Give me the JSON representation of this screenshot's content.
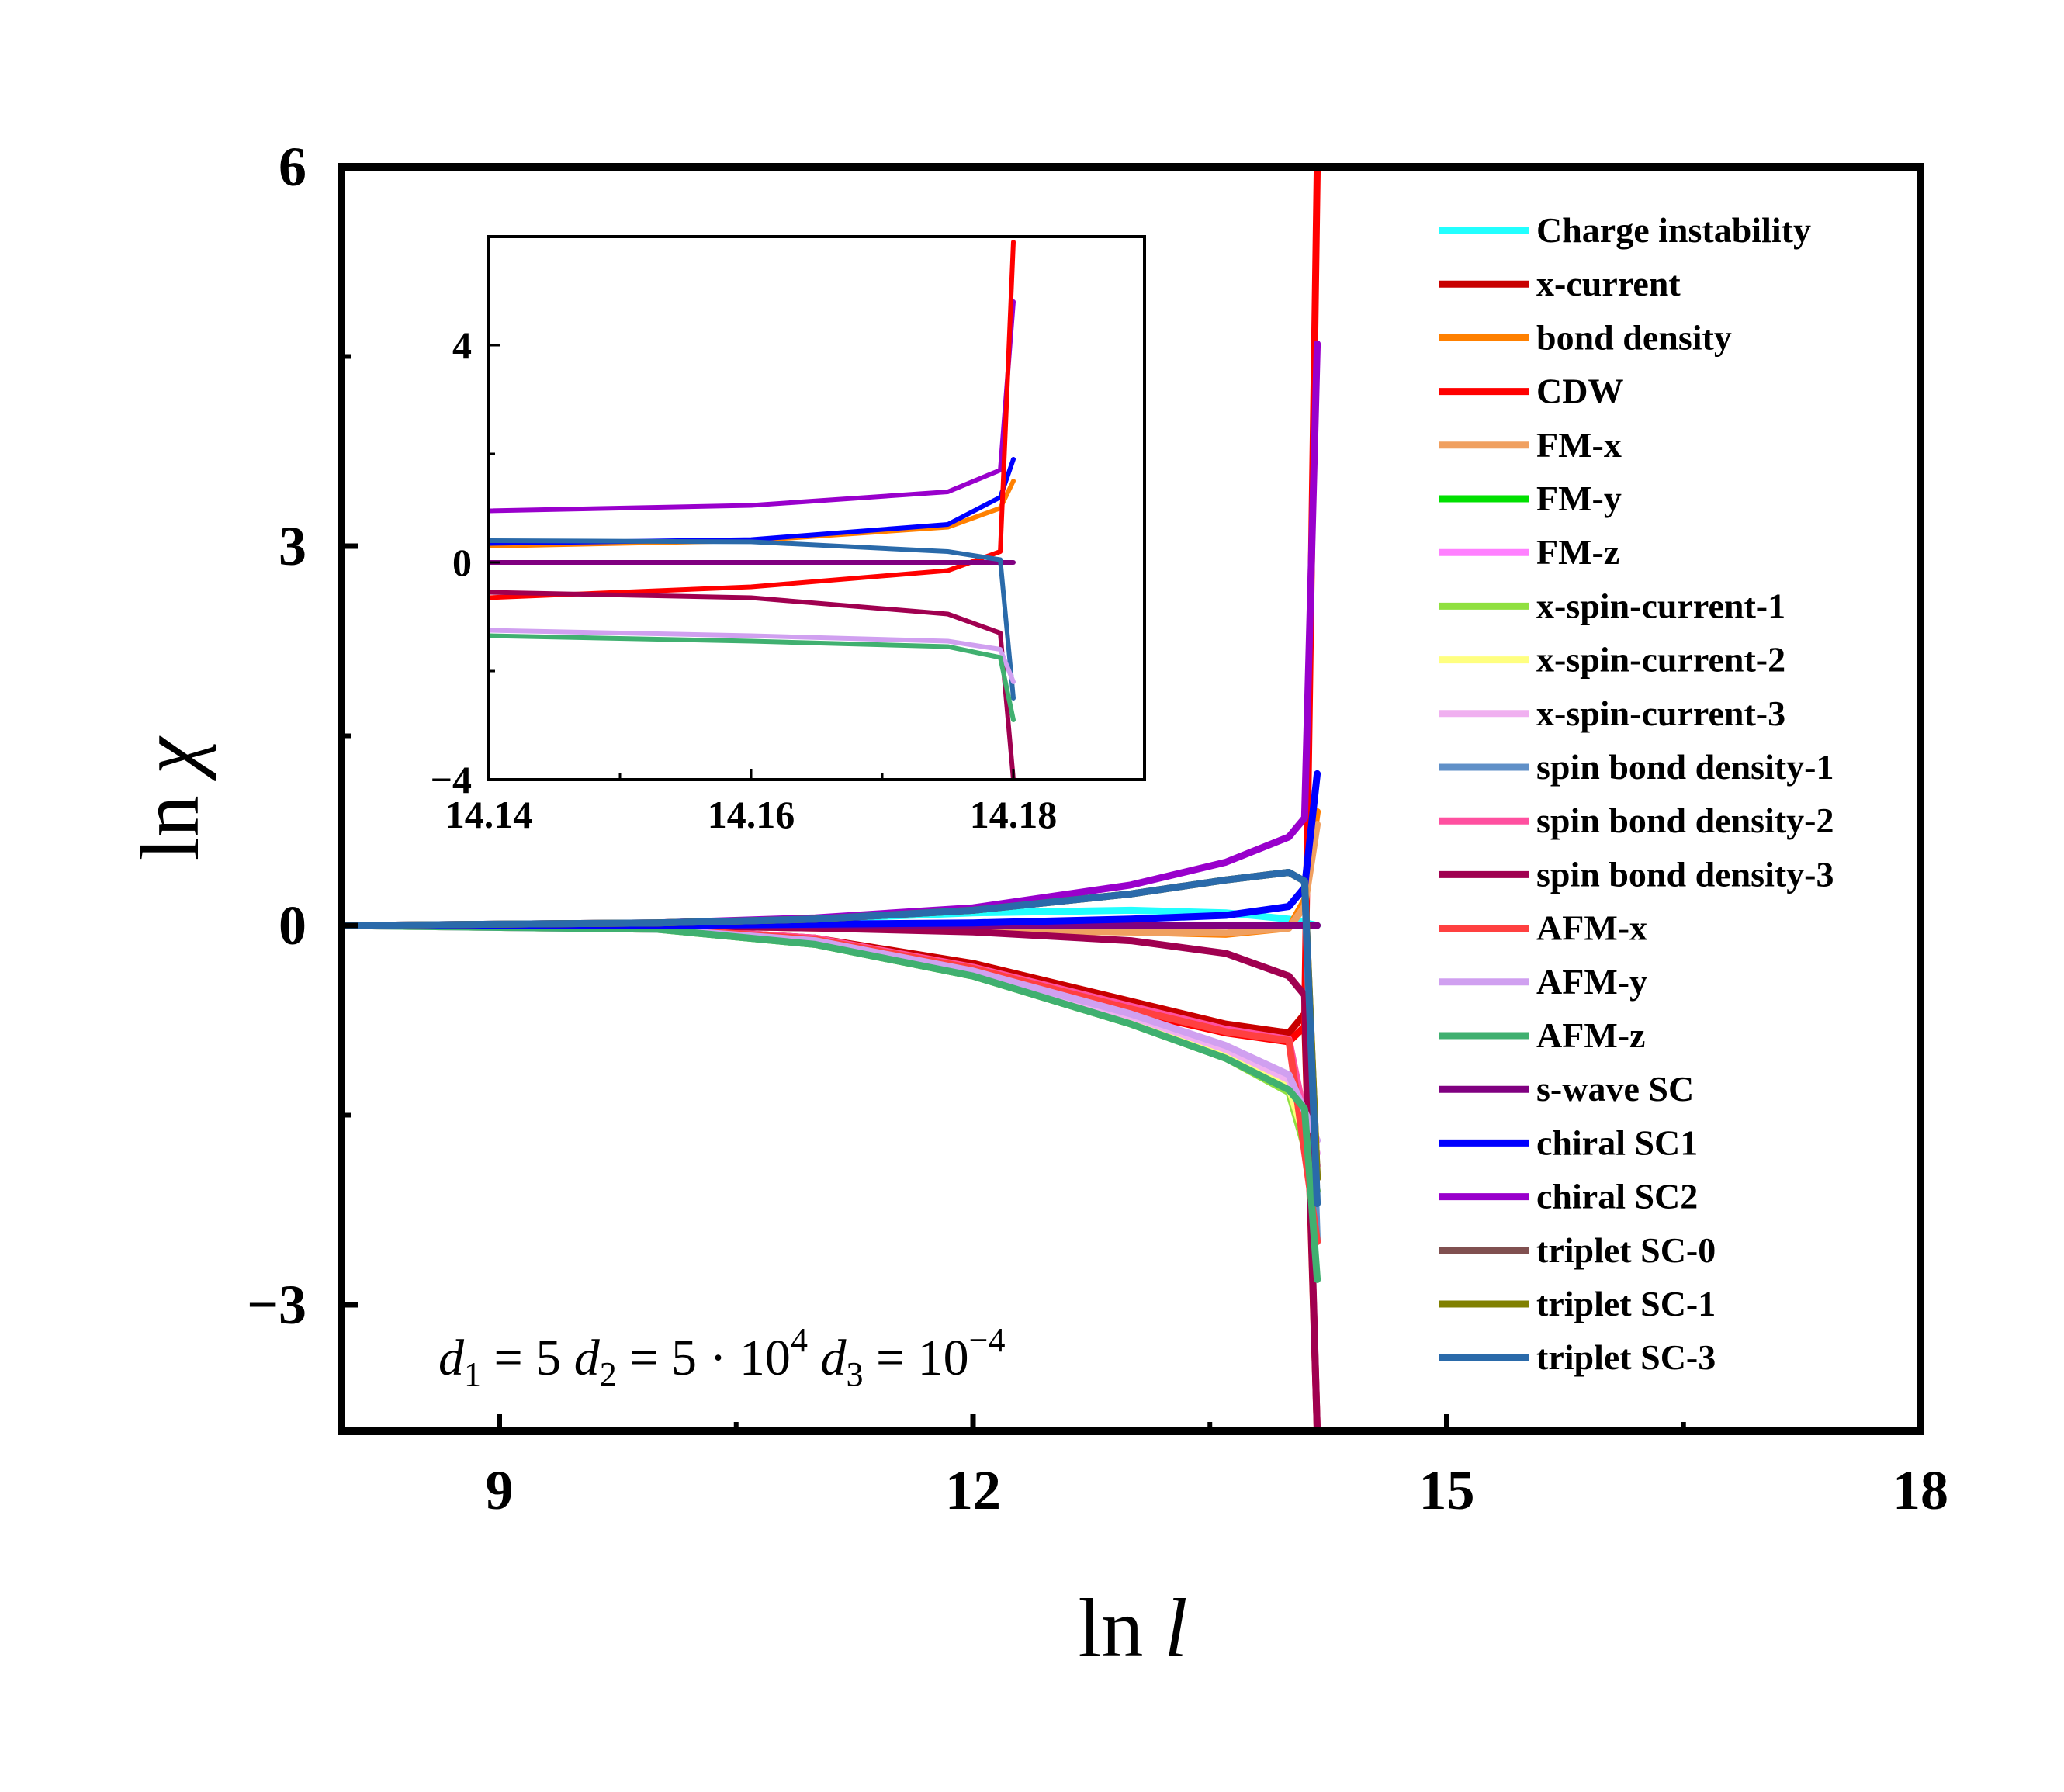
{
  "chart_data": {
    "type": "line",
    "xlabel": "ln l",
    "ylabel": "ln χ",
    "xlim": [
      8,
      18
    ],
    "ylim": [
      -4,
      6
    ],
    "xticks": [
      9,
      12,
      15,
      18
    ],
    "yticks": [
      -3,
      0,
      3,
      6
    ],
    "ytick_labels": [
      "−3",
      "0",
      "3",
      "6"
    ],
    "annotation": "d1 = 5 d2 = 5·10^4 d3 = 10^−4",
    "annotation_parts": {
      "d1": "d",
      "sub1": "1",
      "eq1": " = 5 ",
      "d2": "d",
      "sub2": "2",
      "eq2": " = 5 · 10",
      "sup2": "4",
      "d3": " d",
      "sub3": "3",
      "eq3": " = 10",
      "sup3": "−4"
    },
    "divergence_x": 14.18,
    "legend_position": "right",
    "series": [
      {
        "name": "Charge instability",
        "color": "#22ffff",
        "x": [
          8,
          10,
          11,
          12,
          13,
          13.6,
          14,
          14.18
        ],
        "y": [
          0,
          0,
          0.05,
          0.1,
          0.12,
          0.1,
          0.05,
          0.0
        ]
      },
      {
        "name": "x-current",
        "color": "#c80000",
        "x": [
          8,
          10,
          11,
          12,
          13,
          13.6,
          14,
          14.1,
          14.18
        ],
        "y": [
          0,
          -0.02,
          -0.1,
          -0.3,
          -0.6,
          -0.78,
          -0.85,
          -0.7,
          -4
        ]
      },
      {
        "name": "bond density",
        "color": "#ff8000",
        "x": [
          8,
          10,
          11,
          12,
          13,
          13.6,
          14,
          14.1,
          14.18
        ],
        "y": [
          0,
          0,
          -0.02,
          -0.04,
          -0.05,
          -0.07,
          -0.02,
          0.2,
          0.9
        ]
      },
      {
        "name": "CDW",
        "color": "#ff0000",
        "x": [
          8,
          10,
          11,
          12,
          13,
          13.6,
          14,
          14.1,
          14.18
        ],
        "y": [
          0,
          -0.02,
          -0.12,
          -0.35,
          -0.68,
          -0.85,
          -0.92,
          -0.8,
          6
        ]
      },
      {
        "name": "FM-x",
        "color": "#f0a060",
        "x": [
          8,
          10,
          11,
          12,
          13,
          13.6,
          14,
          14.1,
          14.18
        ],
        "y": [
          0,
          0,
          -0.02,
          -0.04,
          -0.05,
          -0.06,
          -0.02,
          0.15,
          0.8
        ]
      },
      {
        "name": "FM-y",
        "color": "#00e000",
        "x": [
          8,
          10,
          11,
          12,
          13,
          13.6,
          14,
          14.18
        ],
        "y": [
          0,
          -0.03,
          -0.15,
          -0.4,
          -0.78,
          -1.05,
          -1.3,
          -2.0
        ]
      },
      {
        "name": "FM-z",
        "color": "#ff80ff",
        "x": [
          8,
          10,
          11,
          12,
          13,
          13.6,
          14,
          14.18
        ],
        "y": [
          0,
          -0.03,
          -0.13,
          -0.38,
          -0.74,
          -1.0,
          -1.25,
          -1.9
        ]
      },
      {
        "name": "x-spin-current-1",
        "color": "#90e040",
        "x": [
          8,
          10,
          11,
          12,
          13,
          13.6,
          14,
          14.18
        ],
        "y": [
          0,
          -0.03,
          -0.15,
          -0.4,
          -0.78,
          -1.05,
          -1.32,
          -2.1
        ]
      },
      {
        "name": "x-spin-current-2",
        "color": "#ffff80",
        "x": [
          8,
          10,
          11,
          12,
          13,
          13.6,
          14,
          14.18
        ],
        "y": [
          0,
          -0.03,
          -0.14,
          -0.39,
          -0.76,
          -1.02,
          -1.28,
          -2.0
        ]
      },
      {
        "name": "x-spin-current-3",
        "color": "#f0b0f0",
        "x": [
          8,
          10,
          11,
          12,
          13,
          13.6,
          14,
          14.18
        ],
        "y": [
          0,
          -0.03,
          -0.13,
          -0.37,
          -0.72,
          -0.98,
          -1.22,
          -1.8
        ]
      },
      {
        "name": "spin bond density-1",
        "color": "#6090c8",
        "x": [
          8,
          10,
          11,
          12,
          13,
          13.6,
          14,
          14.1,
          14.18
        ],
        "y": [
          0,
          0.02,
          0.05,
          0.12,
          0.25,
          0.36,
          0.42,
          0.35,
          -2.5
        ]
      },
      {
        "name": "spin bond density-2",
        "color": "#ff50a0",
        "x": [
          8,
          10,
          11,
          12,
          13,
          13.6,
          14,
          14.18
        ],
        "y": [
          0,
          -0.02,
          -0.1,
          -0.33,
          -0.64,
          -0.82,
          -0.9,
          -2.0
        ]
      },
      {
        "name": "spin bond density-3",
        "color": "#a00050",
        "x": [
          8,
          10,
          11,
          12,
          13,
          13.6,
          14,
          14.1,
          14.18
        ],
        "y": [
          0,
          0,
          -0.02,
          -0.05,
          -0.12,
          -0.22,
          -0.4,
          -0.55,
          -4
        ]
      },
      {
        "name": "AFM-x",
        "color": "#ff4040",
        "x": [
          8,
          10,
          11,
          12,
          13,
          13.6,
          14,
          14.18
        ],
        "y": [
          0,
          -0.02,
          -0.11,
          -0.34,
          -0.66,
          -0.84,
          -0.91,
          -2.5
        ]
      },
      {
        "name": "AFM-y",
        "color": "#d0a0f0",
        "x": [
          8,
          10,
          11,
          12,
          13,
          13.6,
          14,
          14.18
        ],
        "y": [
          0,
          -0.03,
          -0.12,
          -0.36,
          -0.7,
          -0.95,
          -1.18,
          -1.7
        ]
      },
      {
        "name": "AFM-z",
        "color": "#40b070",
        "x": [
          8,
          10,
          11,
          12,
          13,
          13.6,
          14,
          14.1,
          14.18
        ],
        "y": [
          0,
          -0.03,
          -0.15,
          -0.4,
          -0.78,
          -1.05,
          -1.3,
          -1.45,
          -2.8
        ]
      },
      {
        "name": "s-wave SC",
        "color": "#800080",
        "x": [
          8,
          10,
          12,
          14,
          14.18
        ],
        "y": [
          0,
          0,
          0,
          0,
          0
        ]
      },
      {
        "name": "chiral SC1",
        "color": "#0000ff",
        "x": [
          8,
          10,
          11,
          12,
          13,
          13.6,
          14,
          14.1,
          14.18
        ],
        "y": [
          0,
          0,
          0.01,
          0.02,
          0.05,
          0.08,
          0.15,
          0.3,
          1.2
        ]
      },
      {
        "name": "chiral SC2",
        "color": "#9900cc",
        "x": [
          8,
          10,
          11,
          12,
          13,
          13.6,
          14,
          14.1,
          14.18
        ],
        "y": [
          0,
          0.02,
          0.06,
          0.14,
          0.32,
          0.5,
          0.7,
          0.85,
          4.6
        ]
      },
      {
        "name": "triplet SC-0",
        "color": "#805050",
        "x": [
          8,
          10,
          11,
          12,
          13,
          13.6,
          14,
          14.1,
          14.18
        ],
        "y": [
          0,
          0.02,
          0.05,
          0.12,
          0.25,
          0.36,
          0.42,
          0.35,
          -2.0
        ]
      },
      {
        "name": "triplet SC-1",
        "color": "#808000",
        "x": [
          8,
          10,
          11,
          12,
          13,
          13.6,
          14,
          14.1,
          14.18
        ],
        "y": [
          0,
          0.02,
          0.05,
          0.12,
          0.25,
          0.36,
          0.42,
          0.35,
          -2.0
        ]
      },
      {
        "name": "triplet SC-3",
        "color": "#2a6aaa",
        "x": [
          8,
          10,
          11,
          12,
          13,
          13.6,
          14,
          14.1,
          14.18
        ],
        "y": [
          0,
          0.02,
          0.05,
          0.12,
          0.25,
          0.36,
          0.42,
          0.35,
          -2.2
        ]
      }
    ],
    "inset": {
      "xlim": [
        14.14,
        14.19
      ],
      "ylim": [
        -4,
        6
      ],
      "xticks": [
        14.14,
        14.16,
        14.18
      ],
      "xtick_labels": [
        "14.14",
        "14.16",
        "14.18"
      ],
      "yticks": [
        -4,
        0,
        4
      ],
      "ytick_labels": [
        "−4",
        "0",
        "4"
      ],
      "series": [
        {
          "name": "chiral SC2",
          "color": "#9900cc",
          "x": [
            14.14,
            14.16,
            14.175,
            14.179,
            14.18
          ],
          "y": [
            0.95,
            1.05,
            1.3,
            1.7,
            4.8
          ]
        },
        {
          "name": "bond density",
          "color": "#ff8000",
          "x": [
            14.14,
            14.16,
            14.175,
            14.179,
            14.18
          ],
          "y": [
            0.3,
            0.4,
            0.65,
            1.0,
            1.5
          ]
        },
        {
          "name": "chiral SC1",
          "color": "#0000ff",
          "x": [
            14.14,
            14.16,
            14.175,
            14.179,
            14.18
          ],
          "y": [
            0.35,
            0.42,
            0.7,
            1.2,
            1.9
          ]
        },
        {
          "name": "CDW",
          "color": "#ff0000",
          "x": [
            14.14,
            14.16,
            14.175,
            14.179,
            14.18
          ],
          "y": [
            -0.65,
            -0.45,
            -0.15,
            0.2,
            5.9
          ]
        },
        {
          "name": "s-wave SC",
          "color": "#800080",
          "x": [
            14.14,
            14.18
          ],
          "y": [
            0,
            0
          ]
        },
        {
          "name": "triplet SC-3",
          "color": "#2a6aaa",
          "x": [
            14.14,
            14.16,
            14.175,
            14.179,
            14.18
          ],
          "y": [
            0.4,
            0.38,
            0.2,
            0.05,
            -2.5
          ]
        },
        {
          "name": "spin bond density-3",
          "color": "#a00050",
          "x": [
            14.14,
            14.16,
            14.175,
            14.179,
            14.18
          ],
          "y": [
            -0.55,
            -0.65,
            -0.95,
            -1.3,
            -4
          ]
        },
        {
          "name": "AFM-y",
          "color": "#d0a0f0",
          "x": [
            14.14,
            14.16,
            14.175,
            14.179,
            14.18
          ],
          "y": [
            -1.25,
            -1.35,
            -1.45,
            -1.6,
            -2.2
          ]
        },
        {
          "name": "AFM-z",
          "color": "#40b070",
          "x": [
            14.14,
            14.16,
            14.175,
            14.179,
            14.18
          ],
          "y": [
            -1.35,
            -1.45,
            -1.55,
            -1.75,
            -2.9
          ]
        }
      ]
    }
  }
}
